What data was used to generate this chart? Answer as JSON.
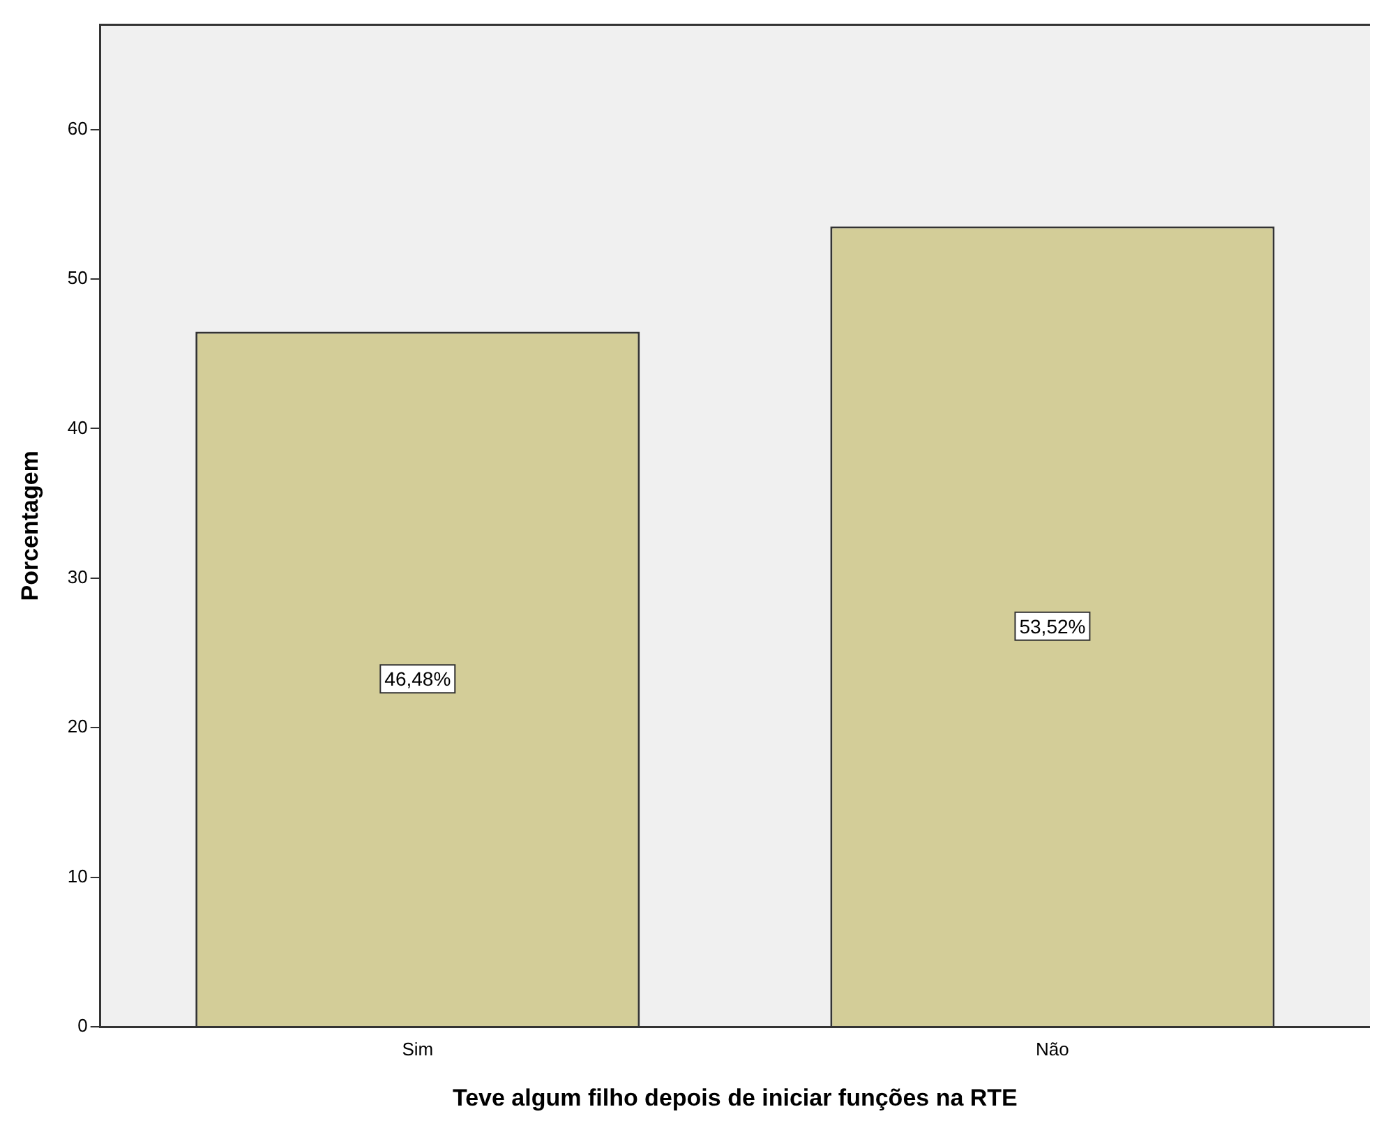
{
  "chart_data": {
    "type": "bar",
    "xlabel": "Teve algum filho depois de iniciar funções na RTE",
    "ylabel": "Porcentagem",
    "categories": [
      "Sim",
      "Não"
    ],
    "values": [
      46.48,
      53.52
    ],
    "value_labels": [
      "46,48%",
      "53,52%"
    ],
    "color": "#d3cd98",
    "ylim": [
      0,
      67
    ],
    "yticks": [
      0,
      10,
      20,
      30,
      40,
      50,
      60
    ],
    "grid": false,
    "legend": false
  }
}
